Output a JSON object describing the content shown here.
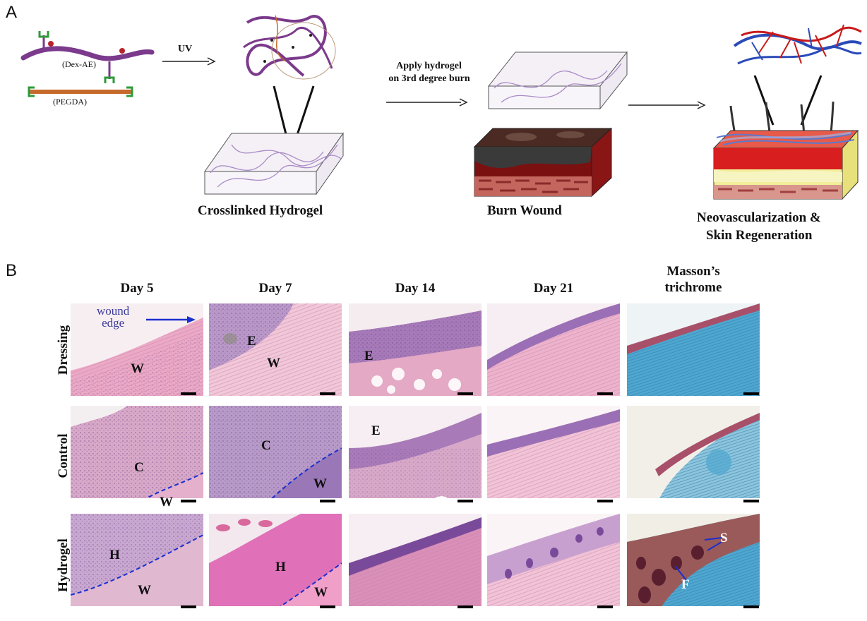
{
  "panel_a": {
    "letter": "A",
    "polymer1": "(Dex-AE)",
    "polymer2": "(PEGDA)",
    "uv": "UV",
    "apply1": "Apply hydrogel",
    "apply2": "on 3rd degree burn",
    "crosslinked": "Crosslinked Hydrogel",
    "burn": "Burn Wound",
    "neo1": "Neovascularization &",
    "neo2": "Skin Regeneration"
  },
  "panel_b": {
    "letter": "B",
    "columns": [
      "Day 5",
      "Day 7",
      "Day 14",
      "Day 21"
    ],
    "masson1": "Masson’s",
    "masson2": "trichrome",
    "rows": [
      "Dressing",
      "Control",
      "Hydrogel"
    ],
    "wound1": "wound",
    "wound2": "edge",
    "tags": {
      "d_d5_w": "W",
      "d_d7_e": "E",
      "d_d7_w": "W",
      "d_d14_e": "E",
      "c_d5_c": "C",
      "c_d5_w": "W",
      "c_d7_c": "C",
      "c_d7_w": "W",
      "c_d14_e": "E",
      "h_d5_h": "H",
      "h_d5_w": "W",
      "h_d7_h": "H",
      "h_d7_w": "W",
      "h_mt_s": "S",
      "h_mt_f": "F"
    }
  },
  "colors": {
    "he_pink": "#e8a6c4",
    "he_purple": "#9a6fb5",
    "masson_blue": "#4fa7cf",
    "dex": "#7b3a8c",
    "peg": "#c56a2a",
    "green": "#2d9a3a",
    "annot_blue": "#1a2fcf"
  }
}
